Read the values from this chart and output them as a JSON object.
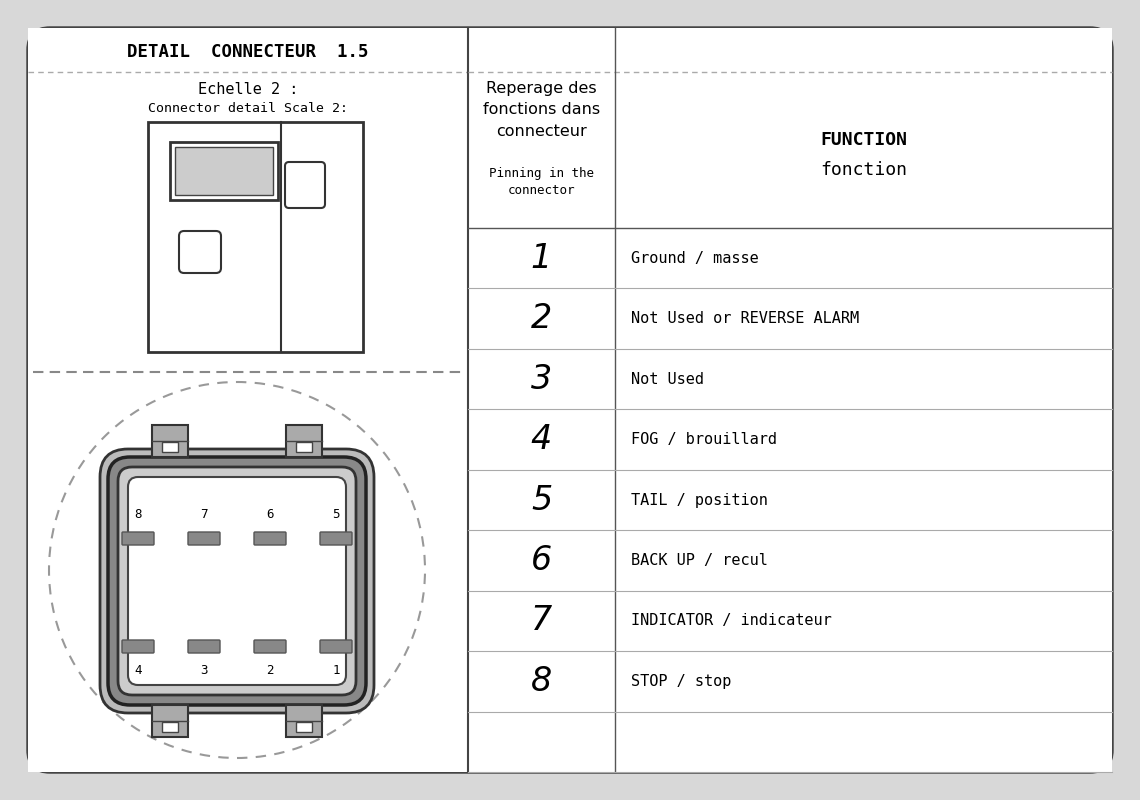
{
  "bg_color": "#d8d8d8",
  "panel_bg": "#e8e8e8",
  "white": "#ffffff",
  "border_color": "#444444",
  "line_color": "#555555",
  "dashed_color": "#999999",
  "title_text": "DETAIL  CONNECTEUR  1.5",
  "subtitle1": "Echelle 2 :",
  "subtitle2": "Connector detail Scale 2:",
  "col1_header": "Reperage des\nfonctions dans\nconnecteur",
  "col1_subheader": "Pinning in the\nconnector",
  "col2_header_line1": "FUNCTION",
  "col2_header_line2": "fonction",
  "pins": [
    {
      "num": "1",
      "func": "Ground / masse"
    },
    {
      "num": "2",
      "func": "Not Used or REVERSE ALARM"
    },
    {
      "num": "3",
      "func": "Not Used"
    },
    {
      "num": "4",
      "func": "FOG / brouillard"
    },
    {
      "num": "5",
      "func": "TAIL / position"
    },
    {
      "num": "6",
      "func": "BACK UP / recul"
    },
    {
      "num": "7",
      "func": "INDICATOR / indicateur"
    },
    {
      "num": "8",
      "func": "STOP / stop"
    }
  ]
}
